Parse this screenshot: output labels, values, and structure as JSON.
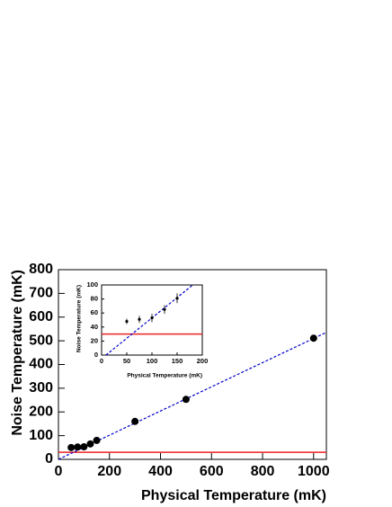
{
  "chart_data": [
    {
      "type": "scatter",
      "x_label": "Physical Temperature (mK)",
      "y_label": "Noise Temperature (mK)",
      "x": [
        50,
        75,
        100,
        125,
        150,
        300,
        500,
        1000
      ],
      "series": [
        {
          "color": "#000000",
          "values": [
            50,
            52,
            53,
            65,
            80,
            160,
            253,
            511
          ]
        }
      ],
      "fit": {
        "slope": 0.51,
        "intercept": 0,
        "color": "#0000cc"
      },
      "hline": {
        "value": 30,
        "color": "#ee2222"
      },
      "xlim": [
        0,
        1050
      ],
      "ylim": [
        0,
        800
      ],
      "xticks": [
        0,
        200,
        400,
        600,
        800,
        1000
      ],
      "yticks": [
        0,
        100,
        200,
        300,
        400,
        500,
        600,
        700,
        800
      ]
    },
    {
      "type": "scatter",
      "x_label": "Physical Temperature (mK)",
      "y_label": "Noise Temperature (mK)",
      "x": [
        50,
        75,
        100,
        125,
        150
      ],
      "series": [
        {
          "color": "#000000",
          "values": [
            48,
            51,
            53,
            65,
            81
          ],
          "errors": [
            4,
            5,
            6,
            6,
            7
          ]
        }
      ],
      "fit": {
        "slope": 0.58,
        "intercept": -5,
        "color": "#0000cc"
      },
      "hline": {
        "value": 30,
        "color": "#ee2222"
      },
      "xlim": [
        0,
        200
      ],
      "ylim": [
        0,
        100
      ],
      "xticks": [
        0,
        50,
        100,
        150,
        200
      ],
      "yticks": [
        0,
        20,
        40,
        60,
        80,
        100
      ]
    }
  ]
}
